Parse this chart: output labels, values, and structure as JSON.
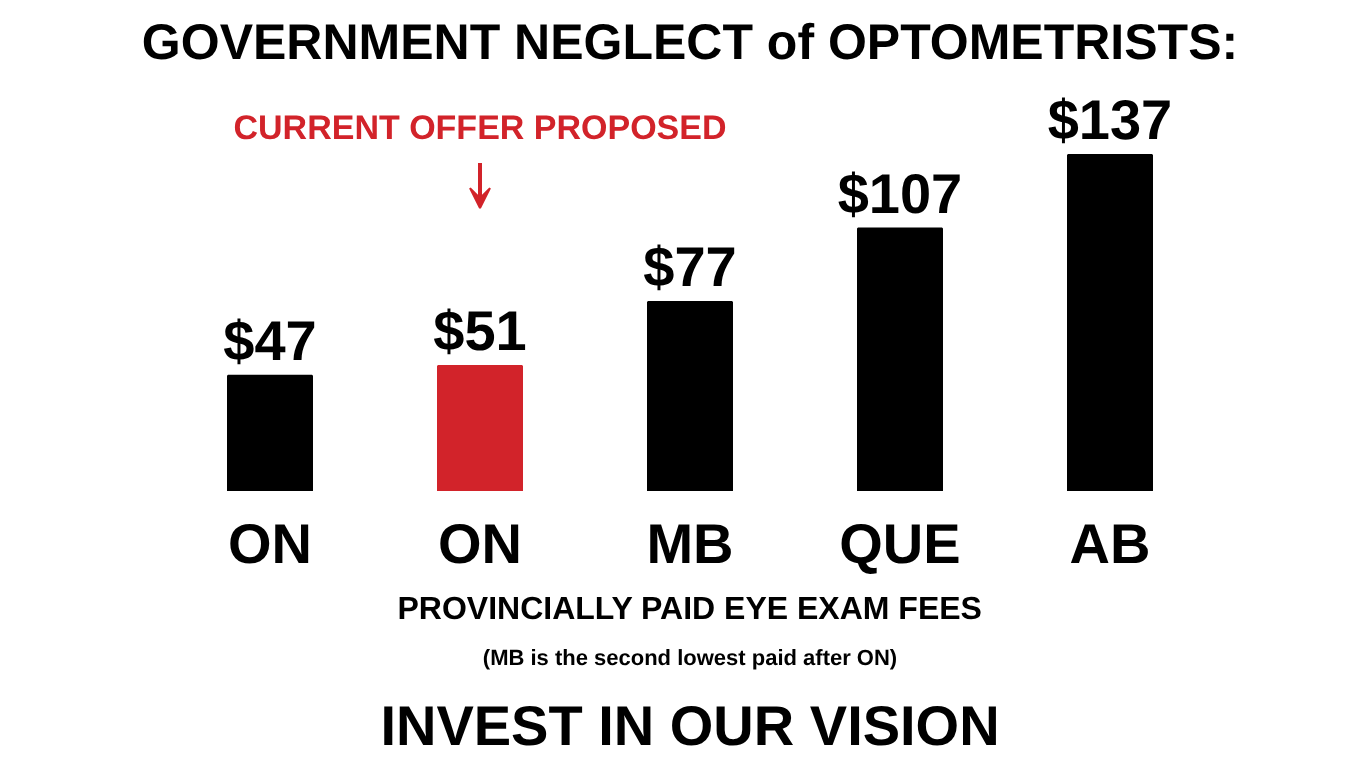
{
  "chart_data": {
    "type": "bar",
    "title": "GOVERNMENT NEGLECT of OPTOMETRISTS:",
    "xlabel": "PROVINCIALLY PAID EYE EXAM FEES",
    "categories": [
      "ON",
      "ON",
      "MB",
      "QUE",
      "AB"
    ],
    "values": [
      47,
      51,
      77,
      107,
      137
    ],
    "colors": [
      "#000000",
      "#d2232a",
      "#000000",
      "#000000",
      "#000000"
    ],
    "value_labels": [
      "$47",
      "$51",
      "$77",
      "$107",
      "$137"
    ],
    "annotations": [
      "CURRENT OFFER PROPOSED",
      "(MB is the second lowest paid after ON)",
      "INVEST IN OUR VISION"
    ],
    "grid": false
  }
}
